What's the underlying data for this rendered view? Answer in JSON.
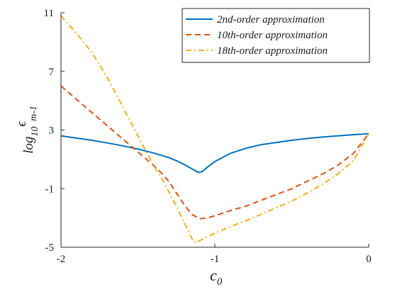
{
  "chart_data": {
    "type": "line",
    "title": "",
    "xlabel": {
      "base": "c",
      "subscript": "0"
    },
    "ylabel": {
      "prefix": "log",
      "sub": "10",
      "base": "ϵ",
      "post": "m-1"
    },
    "xlim": [
      -2,
      0
    ],
    "ylim": [
      -5,
      11
    ],
    "xticks": [
      -2,
      -1,
      0
    ],
    "xtick_labels": [
      "-2",
      "-1",
      "0"
    ],
    "yticks": [
      -5,
      -1,
      3,
      7,
      11
    ],
    "ytick_labels": [
      "-5",
      "-1",
      "3",
      "7",
      "11"
    ],
    "grid": false,
    "legend_position": "top-right",
    "series": [
      {
        "name": "2nd-order approximation",
        "color": "#0072BD",
        "dash": "solid",
        "x": [
          -2,
          -1.9,
          -1.8,
          -1.7,
          -1.6,
          -1.5,
          -1.4,
          -1.3,
          -1.25,
          -1.2,
          -1.15,
          -1.12,
          -1.1,
          -1.08,
          -1.05,
          -1.0,
          -0.9,
          -0.8,
          -0.7,
          -0.6,
          -0.5,
          -0.4,
          -0.3,
          -0.2,
          -0.1,
          0
        ],
        "y": [
          2.6,
          2.45,
          2.3,
          2.12,
          1.92,
          1.7,
          1.44,
          1.12,
          0.9,
          0.65,
          0.35,
          0.17,
          0.1,
          0.18,
          0.45,
          0.85,
          1.4,
          1.75,
          2.0,
          2.15,
          2.3,
          2.42,
          2.52,
          2.6,
          2.68,
          2.75
        ]
      },
      {
        "name": "10th-order approximation",
        "color": "#D95319",
        "dash": "dashed",
        "x": [
          -2,
          -1.9,
          -1.8,
          -1.7,
          -1.6,
          -1.5,
          -1.4,
          -1.35,
          -1.3,
          -1.25,
          -1.2,
          -1.15,
          -1.1,
          -1.05,
          -1.0,
          -0.9,
          -0.8,
          -0.7,
          -0.6,
          -0.5,
          -0.4,
          -0.3,
          -0.2,
          -0.1,
          0
        ],
        "y": [
          6.0,
          5.1,
          4.2,
          3.3,
          2.4,
          1.5,
          0.6,
          0.1,
          -0.5,
          -1.3,
          -2.1,
          -2.75,
          -3.05,
          -3.0,
          -2.85,
          -2.5,
          -2.2,
          -1.8,
          -1.4,
          -1.0,
          -0.5,
          0.0,
          0.6,
          1.4,
          2.75
        ]
      },
      {
        "name": "18th-order approximation",
        "color": "#EDB120",
        "dash": "dashdot",
        "x": [
          -2,
          -1.9,
          -1.8,
          -1.7,
          -1.6,
          -1.5,
          -1.4,
          -1.35,
          -1.3,
          -1.25,
          -1.2,
          -1.15,
          -1.12,
          -1.1,
          -1.05,
          -1.0,
          -0.9,
          -0.8,
          -0.7,
          -0.6,
          -0.5,
          -0.4,
          -0.3,
          -0.2,
          -0.1,
          0
        ],
        "y": [
          10.8,
          9.6,
          8.3,
          6.6,
          4.6,
          2.6,
          0.6,
          -0.2,
          -1.2,
          -2.2,
          -3.3,
          -4.4,
          -4.7,
          -4.55,
          -4.3,
          -4.05,
          -3.6,
          -3.2,
          -2.75,
          -2.3,
          -1.85,
          -1.3,
          -0.7,
          0.0,
          0.9,
          2.75
        ]
      }
    ]
  }
}
